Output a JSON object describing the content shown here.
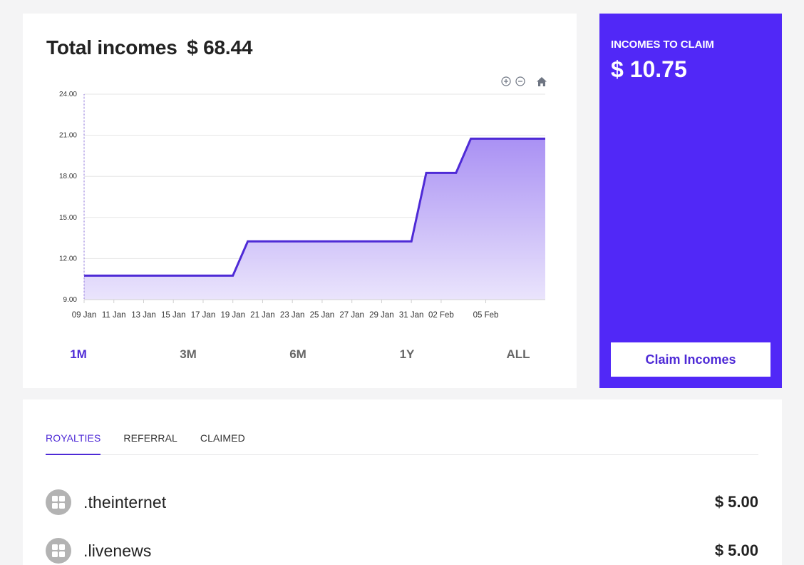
{
  "overview": {
    "title_label": "Total incomes",
    "title_amount": "$ 68.44"
  },
  "chart_tools": {
    "zoom_in_icon": "zoom-in-icon",
    "zoom_out_icon": "zoom-out-icon",
    "reset_icon": "home-icon"
  },
  "chart_data": {
    "type": "area",
    "title": "",
    "xlabel": "",
    "ylabel": "",
    "ylim": [
      9,
      24
    ],
    "y_ticks": [
      "9.00",
      "12.00",
      "15.00",
      "18.00",
      "21.00",
      "24.00"
    ],
    "x_ticks": [
      "09 Jan",
      "11 Jan",
      "13 Jan",
      "15 Jan",
      "17 Jan",
      "19 Jan",
      "21 Jan",
      "23 Jan",
      "25 Jan",
      "27 Jan",
      "29 Jan",
      "31 Jan",
      "02 Feb",
      "05 Feb"
    ],
    "xlim": [
      "2024-01-09",
      "2024-02-09"
    ],
    "grid": true,
    "line_color": "#4e2ad6",
    "fill_color": "#b59cf5",
    "series": [
      {
        "x": [
          "2024-01-09",
          "2024-01-19",
          "2024-01-20",
          "2024-01-31",
          "2024-02-01",
          "2024-02-03",
          "2024-02-04",
          "2024-02-09"
        ],
        "values": [
          10.75,
          10.75,
          13.25,
          13.25,
          18.25,
          18.25,
          20.75,
          20.75
        ]
      }
    ]
  },
  "ranges": {
    "items": [
      "1M",
      "3M",
      "6M",
      "1Y",
      "ALL"
    ],
    "active": "1M"
  },
  "claim": {
    "label": "INCOMES TO CLAIM",
    "amount": "$ 10.75",
    "button_label": "Claim Incomes"
  },
  "tabs": {
    "items": [
      "ROYALTIES",
      "REFERRAL",
      "CLAIMED"
    ],
    "active": "ROYALTIES"
  },
  "incomes": [
    {
      "name": ".theinternet",
      "amount": "$ 5.00",
      "icon": "grid-icon"
    },
    {
      "name": ".livenews",
      "amount": "$ 5.00",
      "icon": "grid-icon"
    }
  ],
  "colors": {
    "accent": "#5128f7",
    "accent_text": "#4e2ad6",
    "background": "#f4f4f5"
  }
}
